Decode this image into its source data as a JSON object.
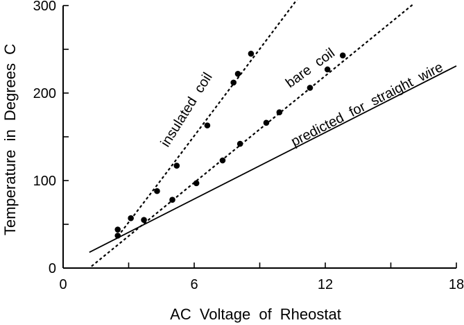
{
  "chart_data": {
    "type": "scatter",
    "title": "",
    "xlabel": "AC Voltage of Rheostat",
    "ylabel": "Temperature in Degrees C",
    "xlim": [
      0,
      18
    ],
    "ylim": [
      0,
      300
    ],
    "xticks": [
      0,
      3,
      6,
      9,
      12,
      15,
      18
    ],
    "yticks": [
      0,
      50,
      100,
      150,
      200,
      250,
      300
    ],
    "xtick_labels": [
      "0",
      "",
      "6",
      "",
      "12",
      "",
      "18"
    ],
    "ytick_labels": [
      "0",
      "",
      "100",
      "",
      "200",
      "",
      "300"
    ],
    "grid": false,
    "series": [
      {
        "name": "insulated coil",
        "style": "dashed",
        "points": [
          {
            "x": 2.5,
            "y": 44
          },
          {
            "x": 3.1,
            "y": 57
          },
          {
            "x": 4.3,
            "y": 88
          },
          {
            "x": 5.2,
            "y": 117
          },
          {
            "x": 6.6,
            "y": 163
          },
          {
            "x": 7.8,
            "y": 212
          },
          {
            "x": 8.0,
            "y": 222
          },
          {
            "x": 8.6,
            "y": 245
          }
        ],
        "fit": [
          {
            "x": 2.5,
            "y": 36
          },
          {
            "x": 4.4,
            "y": 98
          },
          {
            "x": 10.8,
            "y": 310
          }
        ]
      },
      {
        "name": "bare coil",
        "style": "dashed",
        "points": [
          {
            "x": 2.5,
            "y": 37
          },
          {
            "x": 3.7,
            "y": 55
          },
          {
            "x": 5.0,
            "y": 78
          },
          {
            "x": 6.1,
            "y": 97
          },
          {
            "x": 7.3,
            "y": 123
          },
          {
            "x": 8.1,
            "y": 142
          },
          {
            "x": 9.3,
            "y": 166
          },
          {
            "x": 9.9,
            "y": 178
          },
          {
            "x": 11.3,
            "y": 206
          },
          {
            "x": 12.1,
            "y": 227
          },
          {
            "x": 12.8,
            "y": 243
          }
        ],
        "fit": [
          {
            "x": 1.3,
            "y": 2
          },
          {
            "x": 16.0,
            "y": 301
          }
        ]
      },
      {
        "name": "predicted for straight wire",
        "style": "solid",
        "points": [],
        "fit": [
          {
            "x": 1.2,
            "y": 18
          },
          {
            "x": 18.0,
            "y": 231
          }
        ]
      }
    ]
  }
}
